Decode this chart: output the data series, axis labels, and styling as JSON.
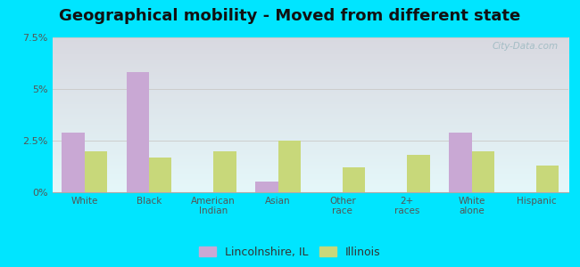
{
  "title": "Geographical mobility - Moved from different state",
  "categories": [
    "White",
    "Black",
    "American\nIndian",
    "Asian",
    "Other\nrace",
    "2+\nraces",
    "White\nalone",
    "Hispanic"
  ],
  "lincolnshire_values": [
    2.9,
    5.8,
    0.0,
    0.5,
    0.0,
    0.0,
    2.9,
    0.0
  ],
  "illinois_values": [
    2.0,
    1.7,
    2.0,
    2.5,
    1.2,
    1.8,
    2.0,
    1.3
  ],
  "lincolnshire_color": "#c9a8d4",
  "illinois_color": "#c8d87a",
  "bar_width": 0.35,
  "ylim": [
    0,
    7.5
  ],
  "ytick_labels": [
    "0%",
    "2.5%",
    "5%",
    "7.5%"
  ],
  "ytick_values": [
    0,
    2.5,
    5.0,
    7.5
  ],
  "outer_background": "#00e5ff",
  "title_fontsize": 13,
  "legend_label1": "Lincolnshire, IL",
  "legend_label2": "Illinois",
  "watermark": "City-Data.com"
}
